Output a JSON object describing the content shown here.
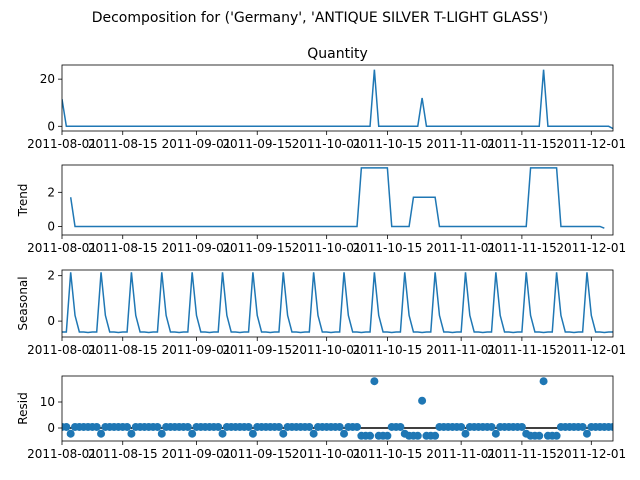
{
  "figure": {
    "title": "Decomposition for ('Germany', 'ANTIQUE SILVER T-LIGHT GLASS')"
  },
  "chart_data": [
    {
      "id": "observed",
      "type": "line",
      "title": "Quantity",
      "ylabel": "",
      "xlim": [
        "2011-08-01",
        "2011-12-06"
      ],
      "ylim": [
        -2,
        26
      ],
      "yticks": [
        0,
        20
      ],
      "xticks": [
        "2011-08-01",
        "2011-08-15",
        "2011-09-01",
        "2011-09-15",
        "2011-10-01",
        "2011-10-15",
        "2011-11-01",
        "2011-11-15",
        "2011-12-01"
      ],
      "line_color": "#1f77b4",
      "points": [
        [
          "2011-08-01",
          11.5
        ],
        [
          "2011-08-02",
          0
        ],
        [
          "2011-10-11",
          0
        ],
        [
          "2011-10-12",
          24
        ],
        [
          "2011-10-13",
          0
        ],
        [
          "2011-10-22",
          0
        ],
        [
          "2011-10-23",
          12
        ],
        [
          "2011-10-24",
          0
        ],
        [
          "2011-11-19",
          0
        ],
        [
          "2011-11-20",
          24
        ],
        [
          "2011-11-21",
          0
        ],
        [
          "2011-12-05",
          0
        ],
        [
          "2011-12-06",
          -1
        ]
      ]
    },
    {
      "id": "trend",
      "type": "line",
      "title": "",
      "ylabel": "Trend",
      "xlim": [
        "2011-08-01",
        "2011-12-06"
      ],
      "ylim": [
        -0.5,
        3.6
      ],
      "yticks": [
        0,
        2
      ],
      "xticks": [
        "2011-08-01",
        "2011-08-15",
        "2011-09-01",
        "2011-09-15",
        "2011-10-01",
        "2011-10-15",
        "2011-11-01",
        "2011-11-15",
        "2011-12-01"
      ],
      "line_color": "#1f77b4",
      "points": [
        [
          "2011-08-03",
          1.71
        ],
        [
          "2011-08-04",
          0
        ],
        [
          "2011-10-08",
          0
        ],
        [
          "2011-10-09",
          3.43
        ],
        [
          "2011-10-15",
          3.43
        ],
        [
          "2011-10-16",
          0
        ],
        [
          "2011-10-20",
          0
        ],
        [
          "2011-10-21",
          1.71
        ],
        [
          "2011-10-26",
          1.71
        ],
        [
          "2011-10-27",
          0
        ],
        [
          "2011-11-16",
          0
        ],
        [
          "2011-11-17",
          3.43
        ],
        [
          "2011-11-23",
          3.43
        ],
        [
          "2011-11-24",
          0
        ],
        [
          "2011-12-03",
          0
        ],
        [
          "2011-12-04",
          -0.1
        ]
      ]
    },
    {
      "id": "seasonal",
      "type": "line",
      "title": "",
      "ylabel": "Seasonal",
      "xlim": [
        "2011-08-01",
        "2011-12-06"
      ],
      "ylim": [
        -0.7,
        2.25
      ],
      "yticks": [
        0,
        2
      ],
      "xticks": [
        "2011-08-01",
        "2011-08-15",
        "2011-09-01",
        "2011-09-15",
        "2011-10-01",
        "2011-10-15",
        "2011-11-01",
        "2011-11-15",
        "2011-12-01"
      ],
      "line_color": "#1f77b4",
      "period": 7,
      "pattern": [
        -0.48,
        -0.48,
        2.15,
        0.25,
        -0.48,
        -0.48,
        -0.5
      ]
    },
    {
      "id": "resid",
      "type": "scatter",
      "title": "",
      "ylabel": "Resid",
      "xlim": [
        "2011-08-01",
        "2011-12-06"
      ],
      "ylim": [
        -5,
        20
      ],
      "yticks": [
        0,
        10
      ],
      "xticks": [
        "2011-08-01",
        "2011-08-15",
        "2011-09-01",
        "2011-09-15",
        "2011-10-01",
        "2011-10-15",
        "2011-11-01",
        "2011-11-15",
        "2011-12-01"
      ],
      "marker_color": "#1f77b4",
      "baseline": 0,
      "outliers": [
        [
          "2011-10-12",
          18
        ],
        [
          "2011-10-23",
          10.5
        ],
        [
          "2011-11-20",
          18
        ]
      ]
    }
  ]
}
